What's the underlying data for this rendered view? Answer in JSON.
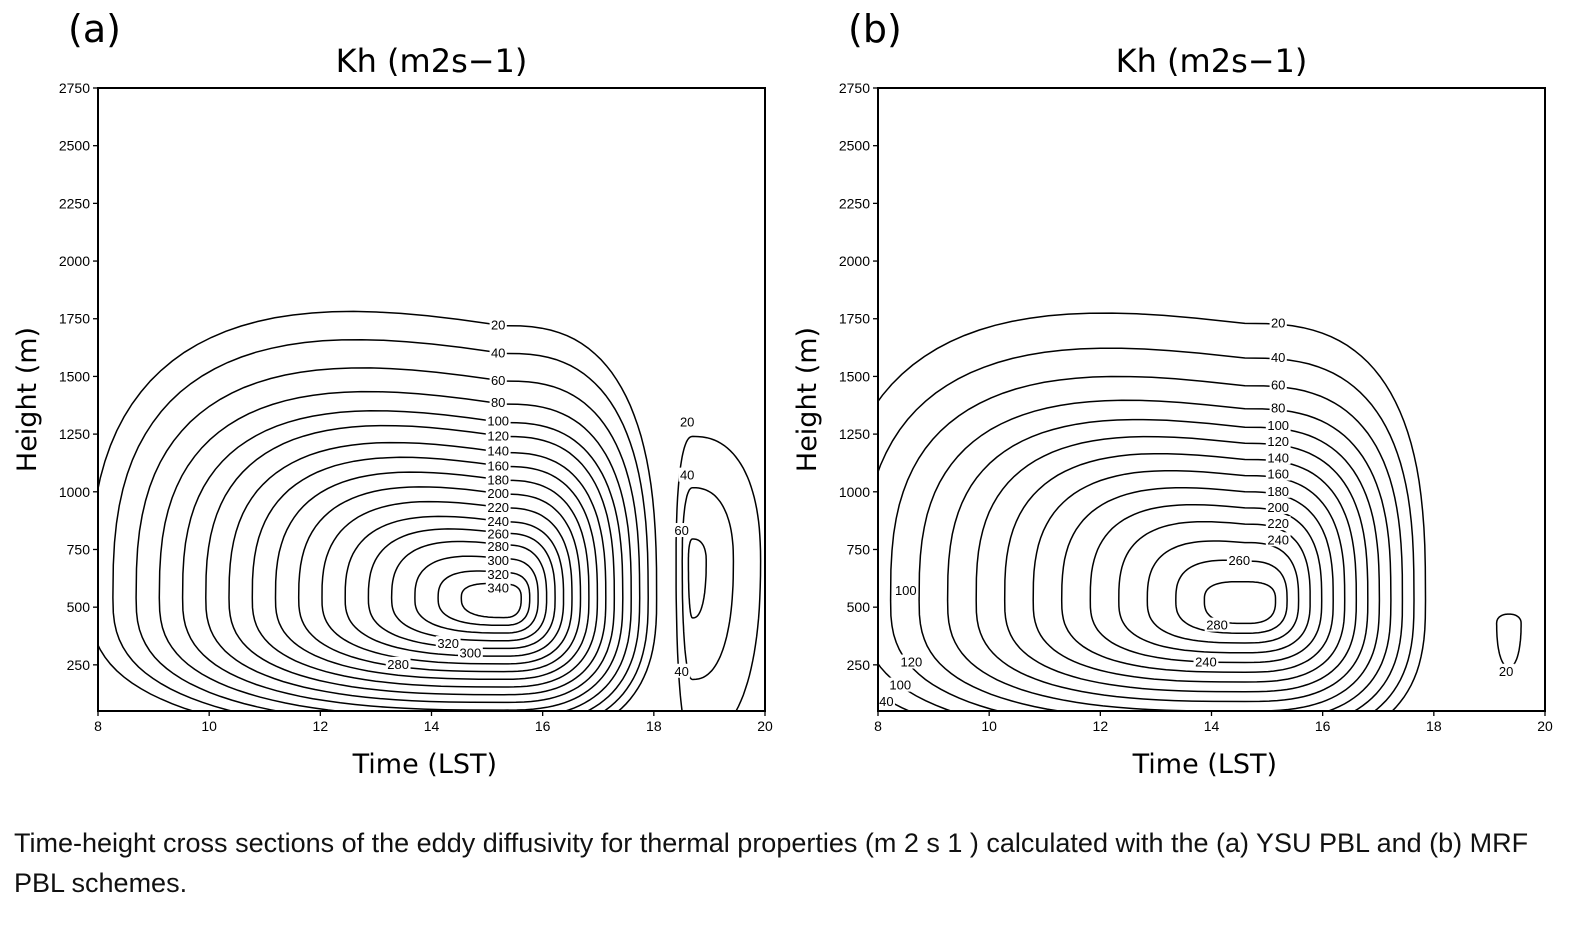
{
  "figure": {
    "caption": "Time-height cross sections of the eddy diffusivity for thermal properties (m 2 s 1 ) calculated with the (a) YSU PBL and (b) MRF PBL schemes."
  },
  "chart_data": [
    {
      "type": "contour",
      "panel_label": "(a)",
      "title": "Kh (m2s−1)",
      "xlabel": "Time (LST)",
      "ylabel": "Height (m)",
      "xlim": [
        8,
        20
      ],
      "ylim": [
        50,
        2750
      ],
      "xticks": [
        "8",
        "10",
        "12",
        "14",
        "16",
        "18",
        "20"
      ],
      "yticks": [
        "250",
        "500",
        "750",
        "1000",
        "1250",
        "1500",
        "1750",
        "2000",
        "2250",
        "2500",
        "2750"
      ],
      "grid": false,
      "contour_interval": 20,
      "main_cell": {
        "levels": [
          20,
          40,
          60,
          80,
          100,
          120,
          140,
          160,
          180,
          200,
          220,
          240,
          260,
          280,
          300,
          320,
          340
        ],
        "peak": {
          "time": 15.3,
          "height": 540,
          "value": 355
        },
        "contour_tops": [
          {
            "level": 20,
            "time": 16.2,
            "height": 1720
          },
          {
            "level": 40,
            "time": 16.2,
            "height": 1600
          },
          {
            "level": 60,
            "time": 16.2,
            "height": 1480
          },
          {
            "level": 80,
            "time": 16.2,
            "height": 1380
          },
          {
            "level": 100,
            "time": 16.2,
            "height": 1300
          },
          {
            "level": 120,
            "time": 16.2,
            "height": 1240
          },
          {
            "level": 140,
            "time": 16.2,
            "height": 1170
          },
          {
            "level": 160,
            "time": 16.2,
            "height": 1110
          },
          {
            "level": 180,
            "time": 16.2,
            "height": 1050
          },
          {
            "level": 200,
            "time": 16.2,
            "height": 990
          },
          {
            "level": 220,
            "time": 16.2,
            "height": 930
          },
          {
            "level": 240,
            "time": 16.2,
            "height": 870
          },
          {
            "level": 260,
            "time": 16.2,
            "height": 820
          },
          {
            "level": 280,
            "time": 16.2,
            "height": 770
          },
          {
            "level": 300,
            "time": 16.2,
            "height": 710
          },
          {
            "level": 320,
            "time": 16.2,
            "height": 650
          },
          {
            "level": 340,
            "time": 16.2,
            "height": 600
          }
        ]
      },
      "secondary_cell": {
        "levels": [
          20,
          40,
          60
        ],
        "peak": {
          "time": 18.7,
          "height": 700,
          "value": 65
        }
      },
      "contour_labels": [
        {
          "text": "20",
          "time": 15.2,
          "height": 1720
        },
        {
          "text": "40",
          "time": 15.2,
          "height": 1600
        },
        {
          "text": "60",
          "time": 15.2,
          "height": 1480
        },
        {
          "text": "80",
          "time": 15.2,
          "height": 1385
        },
        {
          "text": "100",
          "time": 15.2,
          "height": 1305
        },
        {
          "text": "120",
          "time": 15.2,
          "height": 1240
        },
        {
          "text": "140",
          "time": 15.2,
          "height": 1175
        },
        {
          "text": "160",
          "time": 15.2,
          "height": 1110
        },
        {
          "text": "180",
          "time": 15.2,
          "height": 1050
        },
        {
          "text": "200",
          "time": 15.2,
          "height": 990
        },
        {
          "text": "220",
          "time": 15.2,
          "height": 930
        },
        {
          "text": "240",
          "time": 15.2,
          "height": 870
        },
        {
          "text": "260",
          "time": 15.2,
          "height": 815
        },
        {
          "text": "280",
          "time": 15.2,
          "height": 760
        },
        {
          "text": "300",
          "time": 15.2,
          "height": 700
        },
        {
          "text": "320",
          "time": 15.2,
          "height": 640
        },
        {
          "text": "340",
          "time": 15.2,
          "height": 580
        },
        {
          "text": "320",
          "time": 14.3,
          "height": 340
        },
        {
          "text": "300",
          "time": 14.7,
          "height": 300
        },
        {
          "text": "280",
          "time": 13.4,
          "height": 250
        },
        {
          "text": "20",
          "time": 18.6,
          "height": 1300
        },
        {
          "text": "40",
          "time": 18.6,
          "height": 1070
        },
        {
          "text": "60",
          "time": 18.5,
          "height": 830
        },
        {
          "text": "40",
          "time": 18.5,
          "height": 220
        }
      ]
    },
    {
      "type": "contour",
      "panel_label": "(b)",
      "title": "Kh (m2s−1)",
      "xlabel": "Time (LST)",
      "ylabel": "Height (m)",
      "xlim": [
        8,
        20
      ],
      "ylim": [
        50,
        2750
      ],
      "xticks": [
        "8",
        "10",
        "12",
        "14",
        "16",
        "18",
        "20"
      ],
      "yticks": [
        "250",
        "500",
        "750",
        "1000",
        "1250",
        "1500",
        "1750",
        "2000",
        "2250",
        "2500",
        "2750"
      ],
      "grid": false,
      "contour_interval": 20,
      "main_cell": {
        "levels": [
          20,
          40,
          60,
          80,
          100,
          120,
          140,
          160,
          180,
          200,
          220,
          240,
          260,
          280
        ],
        "peak": {
          "time": 14.6,
          "height": 530,
          "value": 285
        },
        "contour_tops": [
          {
            "level": 20,
            "time": 15.8,
            "height": 1730
          },
          {
            "level": 40,
            "time": 15.8,
            "height": 1580
          },
          {
            "level": 60,
            "time": 15.8,
            "height": 1460
          },
          {
            "level": 80,
            "time": 15.8,
            "height": 1360
          },
          {
            "level": 100,
            "time": 15.8,
            "height": 1280
          },
          {
            "level": 120,
            "time": 15.8,
            "height": 1210
          },
          {
            "level": 140,
            "time": 15.8,
            "height": 1140
          },
          {
            "level": 160,
            "time": 15.8,
            "height": 1070
          },
          {
            "level": 180,
            "time": 15.8,
            "height": 1000
          },
          {
            "level": 200,
            "time": 15.8,
            "height": 930
          },
          {
            "level": 220,
            "time": 15.8,
            "height": 860
          },
          {
            "level": 240,
            "time": 15.8,
            "height": 780
          },
          {
            "level": 260,
            "time": 15.8,
            "height": 700
          },
          {
            "level": 280,
            "time": 15.8,
            "height": 610
          }
        ]
      },
      "secondary_cell": {
        "levels": [
          20
        ],
        "peak": {
          "time": 19.35,
          "height": 430,
          "value": 25
        }
      },
      "contour_labels": [
        {
          "text": "20",
          "time": 15.2,
          "height": 1730
        },
        {
          "text": "40",
          "time": 15.2,
          "height": 1580
        },
        {
          "text": "60",
          "time": 15.2,
          "height": 1460
        },
        {
          "text": "80",
          "time": 15.2,
          "height": 1360
        },
        {
          "text": "100",
          "time": 15.2,
          "height": 1285
        },
        {
          "text": "120",
          "time": 15.2,
          "height": 1215
        },
        {
          "text": "140",
          "time": 15.2,
          "height": 1145
        },
        {
          "text": "160",
          "time": 15.2,
          "height": 1075
        },
        {
          "text": "180",
          "time": 15.2,
          "height": 1000
        },
        {
          "text": "200",
          "time": 15.2,
          "height": 930
        },
        {
          "text": "220",
          "time": 15.2,
          "height": 860
        },
        {
          "text": "240",
          "time": 15.2,
          "height": 790
        },
        {
          "text": "260",
          "time": 14.5,
          "height": 700
        },
        {
          "text": "280",
          "time": 14.1,
          "height": 420
        },
        {
          "text": "240",
          "time": 13.9,
          "height": 260
        },
        {
          "text": "100",
          "time": 8.5,
          "height": 570
        },
        {
          "text": "120",
          "time": 8.6,
          "height": 260
        },
        {
          "text": "100",
          "time": 8.4,
          "height": 160
        },
        {
          "text": "40",
          "time": 8.15,
          "height": 90
        },
        {
          "text": "20",
          "time": 19.3,
          "height": 220
        }
      ]
    }
  ]
}
